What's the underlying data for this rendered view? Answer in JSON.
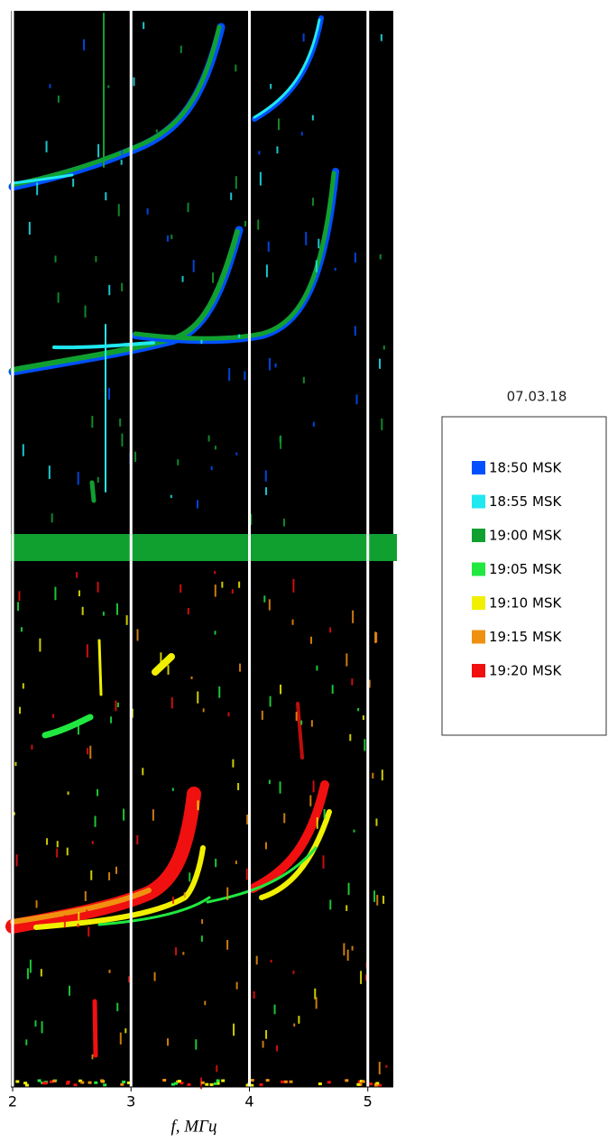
{
  "chart_data": {
    "type": "ionogram",
    "date": "07.03.18",
    "xlabel": "f, МГц",
    "xlim": [
      2,
      5.2
    ],
    "xticks": [
      2,
      3,
      4,
      5
    ],
    "grid": true,
    "series": [
      {
        "name": "18:50 MSK",
        "color": "#0050ff"
      },
      {
        "name": "18:55 MSK",
        "color": "#20e8f0"
      },
      {
        "name": "19:00 MSK",
        "color": "#10a030"
      },
      {
        "name": "19:05 MSK",
        "color": "#20e840"
      },
      {
        "name": "19:10 MSK",
        "color": "#f0f000"
      },
      {
        "name": "19:15 MSK",
        "color": "#f09010"
      },
      {
        "name": "19:20 MSK",
        "color": "#f01010"
      }
    ]
  }
}
